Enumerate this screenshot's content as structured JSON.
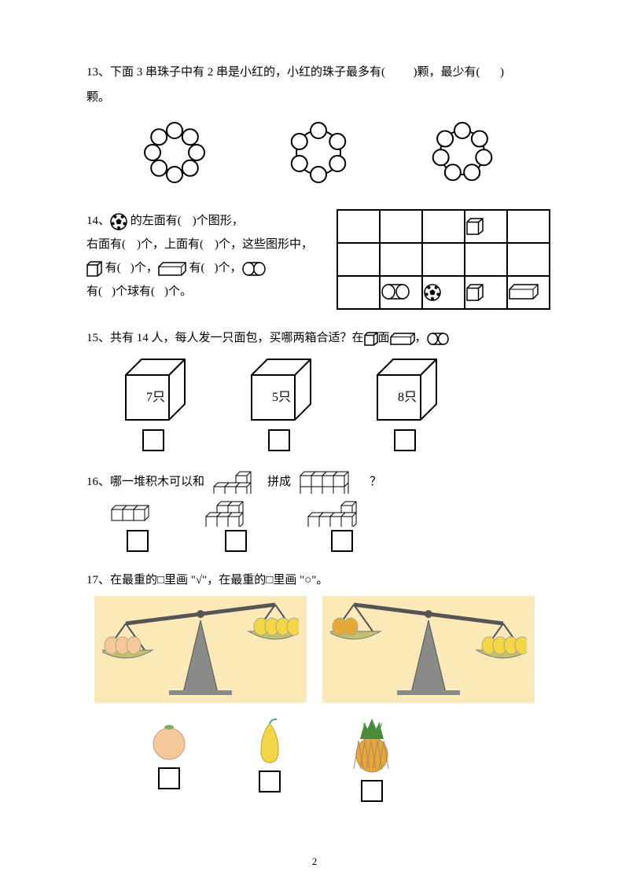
{
  "page_number": "2",
  "q13": {
    "text_a": "13、下面 3 串珠子中有 2 串是小红的，小红的珠子最多有(",
    "text_b": ")颗，最少有(",
    "text_c": ")",
    "text_d": "颗。",
    "bead_counts": [
      8,
      6,
      7
    ],
    "stroke": "#000000"
  },
  "q14": {
    "prefix": "14、",
    "line1_a": " 的左面有(",
    "line1_b": ")个图形，",
    "line2_a": "右面有(",
    "line2_b": ")个，上面有(",
    "line2_c": ")个，这些图形中，",
    "line3_a": " 有(",
    "line3_b": ")个，",
    "line3_c": " 有(",
    "line3_d": ")个，",
    "line4_a": "  有(",
    "line4_b": ")个球有(",
    "line4_c": ")个。",
    "grid_rows": 3,
    "grid_cols": 5,
    "grid_items": [
      {
        "r": 0,
        "c": 3,
        "type": "cube"
      },
      {
        "r": 2,
        "c": 1,
        "type": "cylinder"
      },
      {
        "r": 2,
        "c": 2,
        "type": "ball"
      },
      {
        "r": 2,
        "c": 3,
        "type": "cube"
      },
      {
        "r": 2,
        "c": 4,
        "type": "cuboid"
      }
    ]
  },
  "q15": {
    "text_a": "15、共有 14 人，每人发一只面包，买哪两箱合适？在",
    "text_b": "面",
    "boxes": [
      "7只",
      "5只",
      "8只"
    ]
  },
  "q16": {
    "text_a": "16、哪一堆积木可以和 ",
    "text_b": " 拼成 ",
    "text_c": " ？"
  },
  "q17": {
    "text": "17、在最重的□里画 \"√\"，在最重的□里画  \"○\"。",
    "bg_color": "#fce9b8",
    "scale_color": "#8a8a88",
    "plate_color": "#c0c070",
    "fruit_colors": {
      "orange": "#f5c89a",
      "pear": "#f2d648",
      "pineapple_body": "#e8a838",
      "pineapple_leaf": "#4a8a3a"
    }
  }
}
